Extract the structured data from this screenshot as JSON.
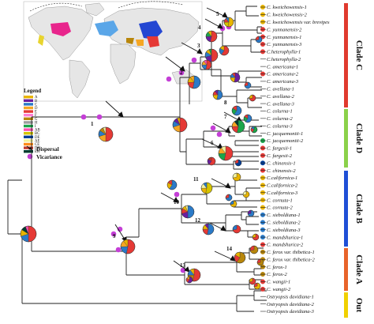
{
  "colors": {
    "A": "#e8b400",
    "B": "#6a1ea0",
    "C": "#2a7ac8",
    "D": "#f5a623",
    "E": "#e53935",
    "F": "#ff7fd6",
    "G": "#b8860b",
    "H": "#9e9e9e",
    "I": "#1aa64a",
    "AB": "#ff4fb0",
    "BC": "#d4c400",
    "DE": "#003d99",
    "AE": "#f2f2a0",
    "CE": "#ff8c1a",
    "DH": "#c0392b",
    "EH": "#003b2f",
    "clade_c": "#e03a2e",
    "clade_d": "#8bd14a",
    "clade_b": "#1f4fd6",
    "clade_a": "#e8642a",
    "out": "#f0d000",
    "china_pink": "#e8258c",
    "nam_blue": "#5aa6e8",
    "europe_yellow": "#e8d42e",
    "east_asia_blue": "#2346d2",
    "east_asia_red": "#e53935"
  },
  "legend": {
    "title": "Legend",
    "areas": [
      "A",
      "B",
      "C",
      "D",
      "E",
      "F",
      "G",
      "H",
      "I",
      "AB",
      "BC",
      "DE",
      "AE",
      "CE",
      "DH",
      "EH"
    ],
    "event_types": [
      {
        "key": "dispersal",
        "label": "Dispersal",
        "icon": "arrow-icon"
      },
      {
        "key": "vicariance",
        "label": "Vicariance",
        "icon": "purple-dot-icon"
      }
    ]
  },
  "clades": [
    {
      "label": "Clade C",
      "color_key": "clade_c"
    },
    {
      "label": "Clade D",
      "color_key": "clade_d"
    },
    {
      "label": "Clade B",
      "color_key": "clade_b"
    },
    {
      "label": "Clade A",
      "color_key": "clade_a"
    },
    {
      "label": "Out",
      "color_key": "out"
    }
  ],
  "taxa": [
    {
      "name": "C. kweichowensis-1",
      "dot": "A"
    },
    {
      "name": "C. kweichowensis-2",
      "dot": "A"
    },
    {
      "name": "C. kweichowensis var. brevipes",
      "dot": "A"
    },
    {
      "name": "C. yunnanensis-2",
      "dot": "E"
    },
    {
      "name": "C. yunnanensis-1",
      "dot": "E"
    },
    {
      "name": "C. yunnanensis-3",
      "dot": "E"
    },
    {
      "name": "C.heterophylla-1",
      "dot": "E"
    },
    {
      "name": "C.heterophylla-2",
      "dot": ""
    },
    {
      "name": "C. americana-1",
      "dot": ""
    },
    {
      "name": "C. americana-2",
      "dot": "E"
    },
    {
      "name": "C. americana-3",
      "dot": ""
    },
    {
      "name": "C. avellana-1",
      "dot": ""
    },
    {
      "name": "C. avellana-2",
      "dot": ""
    },
    {
      "name": "C. avellana-3",
      "dot": ""
    },
    {
      "name": "C. colurna-1",
      "dot": ""
    },
    {
      "name": "C. colurna-2",
      "dot": ""
    },
    {
      "name": "C. colurna-3",
      "dot": ""
    },
    {
      "name": "C. jacquemontii-1",
      "dot": ""
    },
    {
      "name": "C. jacquemontii-2",
      "dot": "I"
    },
    {
      "name": "C. fargesii-1",
      "dot": "E"
    },
    {
      "name": "C. fargesii-2",
      "dot": "E"
    },
    {
      "name": "C. chinensis-1",
      "dot": "DE"
    },
    {
      "name": "C. chinensis-2",
      "dot": "E"
    },
    {
      "name": "C.californica-1",
      "dot": "A"
    },
    {
      "name": "C.californica-2",
      "dot": "A"
    },
    {
      "name": "C.californica-3",
      "dot": "A"
    },
    {
      "name": "C. cornuta-1",
      "dot": "A"
    },
    {
      "name": "C. cornuta-2",
      "dot": "A"
    },
    {
      "name": "C. sieboldiana-1",
      "dot": "C"
    },
    {
      "name": "C. sieboldiana-2",
      "dot": "C"
    },
    {
      "name": "C. sieboldiana-3",
      "dot": "C"
    },
    {
      "name": "C. mandshurica-1",
      "dot": "C"
    },
    {
      "name": "C. mandshurica-2",
      "dot": "E"
    },
    {
      "name": "C. ferox var. thibetica-1",
      "dot": "G"
    },
    {
      "name": "C. ferox var. thibetica-2",
      "dot": "G"
    },
    {
      "name": "C. ferox-1",
      "dot": "G"
    },
    {
      "name": "C. ferox-2",
      "dot": "G"
    },
    {
      "name": "C. wangii-1",
      "dot": "E"
    },
    {
      "name": "C. wangii-2",
      "dot": "E"
    },
    {
      "name": "Ostryopsis davidiana-1",
      "dot": ""
    },
    {
      "name": "Ostryopsis davidiana-2",
      "dot": ""
    },
    {
      "name": "Ostryopsis davidiana-3",
      "dot": ""
    }
  ],
  "nodes": [
    {
      "num": "1",
      "pie": [
        "E",
        "D",
        "C",
        "G",
        "AE"
      ]
    },
    {
      "num": "2",
      "pie": [
        "C",
        "E",
        "A",
        "D"
      ]
    },
    {
      "num": "3",
      "pie": [
        "E",
        "B",
        "C",
        "A",
        "I"
      ]
    },
    {
      "num": "4",
      "pie": [
        "E",
        "B",
        "I",
        "A"
      ]
    },
    {
      "num": "5",
      "pie": [
        "A",
        "BC",
        "E",
        "C"
      ]
    },
    {
      "num": "6",
      "pie": [
        "E",
        "I",
        "D",
        "AE"
      ]
    },
    {
      "num": "7",
      "pie": [
        "I",
        "E",
        "D",
        "EH"
      ]
    },
    {
      "num": "8",
      "pie": [
        "C",
        "I",
        "E"
      ]
    },
    {
      "num": "9",
      "pie": [
        "E",
        "C",
        "D",
        "A"
      ]
    },
    {
      "num": "10",
      "pie": [
        "C",
        "B",
        "E",
        "A",
        "AE"
      ]
    },
    {
      "num": "11",
      "pie": [
        "BC",
        "A",
        "AE",
        "C"
      ]
    },
    {
      "num": "12",
      "pie": [
        "C",
        "E",
        "A",
        "B"
      ]
    },
    {
      "num": "13",
      "pie": [
        "E",
        "G",
        "C",
        "A"
      ]
    },
    {
      "num": "14",
      "pie": [
        "G",
        "E",
        "A"
      ]
    },
    {
      "num": "",
      "pie": [
        "E",
        "C",
        "A",
        "EH",
        "AB"
      ]
    },
    {
      "num": "",
      "pie": [
        "E",
        "C",
        "D",
        "AB"
      ]
    },
    {
      "num": "",
      "pie": [
        "E",
        "D",
        "C",
        "B",
        "A"
      ]
    },
    {
      "num": "",
      "pie": [
        "E",
        "C",
        "A"
      ]
    },
    {
      "num": "",
      "pie": [
        "B",
        "A",
        "C",
        "E"
      ]
    },
    {
      "num": "",
      "pie": [
        "C",
        "A",
        "E",
        "B"
      ]
    },
    {
      "num": "",
      "pie": [
        "C",
        "E"
      ]
    },
    {
      "num": "",
      "pie": [
        "C",
        "E"
      ]
    },
    {
      "num": "",
      "pie": [
        "C",
        "I",
        "E"
      ]
    },
    {
      "num": "",
      "pie": [
        "E",
        "A"
      ]
    },
    {
      "num": "",
      "pie": [
        "A",
        "AE"
      ]
    },
    {
      "num": "",
      "pie": [
        "A",
        "AE"
      ]
    },
    {
      "num": "",
      "pie": [
        "C",
        "B"
      ]
    },
    {
      "num": "",
      "pie": [
        "A",
        "C"
      ]
    },
    {
      "num": "",
      "pie": [
        "G",
        "E"
      ]
    },
    {
      "num": "",
      "pie": [
        "A",
        "E"
      ]
    },
    {
      "num": "",
      "pie": [
        "I",
        "E",
        "C"
      ]
    },
    {
      "num": "",
      "pie": [
        "DE",
        "E"
      ]
    },
    {
      "num": "",
      "pie": [
        "E",
        "B",
        "DH"
      ]
    },
    {
      "num": "",
      "pie": [
        "C",
        "A",
        "E"
      ]
    },
    {
      "num": "",
      "pie": [
        "E",
        "C"
      ]
    },
    {
      "num": "",
      "pie": [
        "E",
        "A"
      ]
    },
    {
      "num": "",
      "pie": [
        "C",
        "E"
      ]
    },
    {
      "num": "",
      "pie": [
        "E",
        "A"
      ]
    },
    {
      "num": "",
      "pie": [
        "G",
        "E"
      ]
    },
    {
      "num": "",
      "pie": [
        "B",
        "E",
        "D"
      ]
    }
  ]
}
